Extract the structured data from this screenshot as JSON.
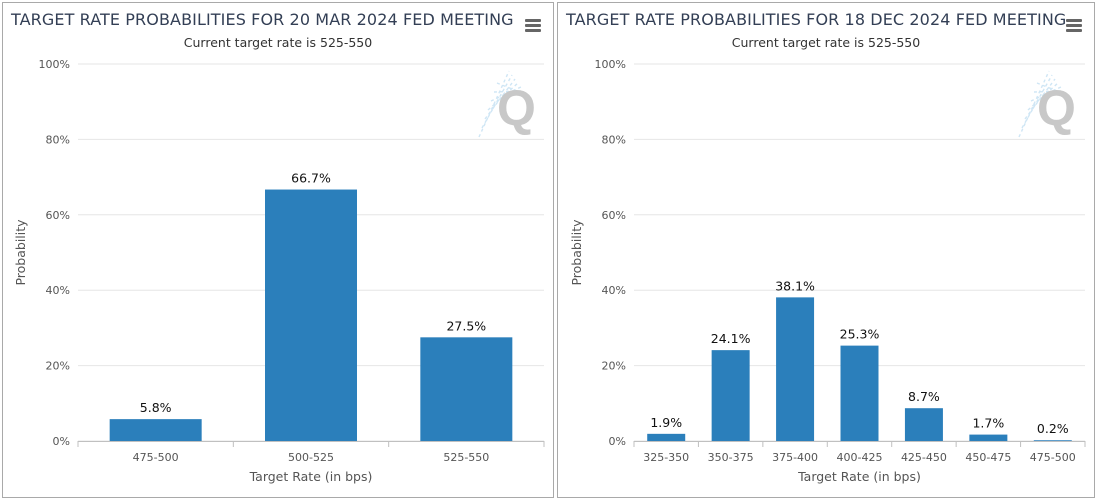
{
  "chart_data": [
    {
      "type": "bar",
      "title": "TARGET RATE PROBABILITIES FOR 20 MAR 2024 FED MEETING",
      "subtitle": "Current target rate is 525-550",
      "xlabel": "Target Rate (in bps)",
      "ylabel": "Probability",
      "ylim": [
        0,
        100
      ],
      "yticks": [
        "0%",
        "20%",
        "40%",
        "60%",
        "80%",
        "100%"
      ],
      "categories": [
        "475-500",
        "500-525",
        "525-550"
      ],
      "values": [
        5.8,
        66.7,
        27.5
      ],
      "data_labels": [
        "5.8%",
        "66.7%",
        "27.5%"
      ],
      "bar_color": "#2b7fbb",
      "grid": true,
      "legend": "none",
      "menu_icon": "hamburger-menu-icon",
      "logo": "quikstrike-q-logo"
    },
    {
      "type": "bar",
      "title": "TARGET RATE PROBABILITIES FOR 18 DEC 2024 FED MEETING",
      "subtitle": "Current target rate is 525-550",
      "xlabel": "Target Rate (in bps)",
      "ylabel": "Probability",
      "ylim": [
        0,
        100
      ],
      "yticks": [
        "0%",
        "20%",
        "40%",
        "60%",
        "80%",
        "100%"
      ],
      "categories": [
        "325-350",
        "350-375",
        "375-400",
        "400-425",
        "425-450",
        "450-475",
        "475-500"
      ],
      "values": [
        1.9,
        24.1,
        38.1,
        25.3,
        8.7,
        1.7,
        0.2
      ],
      "data_labels": [
        "1.9%",
        "24.1%",
        "38.1%",
        "25.3%",
        "8.7%",
        "1.7%",
        "0.2%"
      ],
      "bar_color": "#2b7fbb",
      "grid": true,
      "legend": "none",
      "menu_icon": "hamburger-menu-icon",
      "logo": "quikstrike-q-logo"
    }
  ]
}
